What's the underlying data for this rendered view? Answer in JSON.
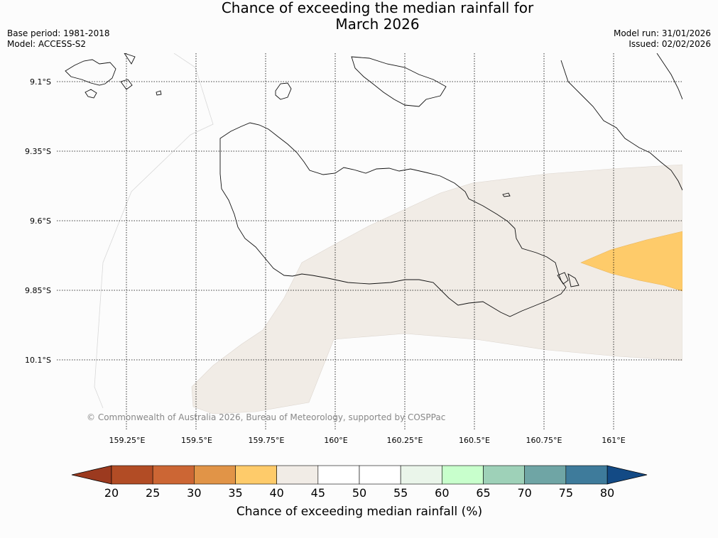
{
  "title": {
    "line1": "Chance of exceeding the median rainfall for",
    "line2": "March 2026"
  },
  "meta": {
    "base_period": "Base period: 1981-2018",
    "model": "Model: ACCESS-S2",
    "model_run": "Model run: 31/01/2026",
    "issued": "Issued: 02/02/2026"
  },
  "map": {
    "lat_labels": [
      "9.1°S",
      "9.35°S",
      "9.6°S",
      "9.85°S",
      "10.1°S"
    ],
    "lon_labels": [
      "159.25°E",
      "159.5°E",
      "159.75°E",
      "160°E",
      "160.25°E",
      "160.5°E",
      "160.75°E",
      "161°E"
    ],
    "copyright": "© Commonwealth of Australia 2026, Bureau of Meteorology, supported by COSPPac"
  },
  "colorbar": {
    "title": "Chance of exceeding median rainfall (%)",
    "ticks": [
      "20",
      "25",
      "30",
      "35",
      "40",
      "45",
      "50",
      "55",
      "60",
      "65",
      "70",
      "75",
      "80"
    ],
    "colors": [
      "#9c3a1f",
      "#b24c25",
      "#cc6634",
      "#e19447",
      "#fecb6a",
      "#f1ece6",
      "#ffffff",
      "#ffffff",
      "#eaf5ea",
      "#c8ffcc",
      "#9ed1b8",
      "#6fa5a5",
      "#3e7b9b",
      "#134a85"
    ],
    "region_colors": {
      "40-45": "#f1ece6",
      "35-40": "#fecb6a"
    }
  }
}
